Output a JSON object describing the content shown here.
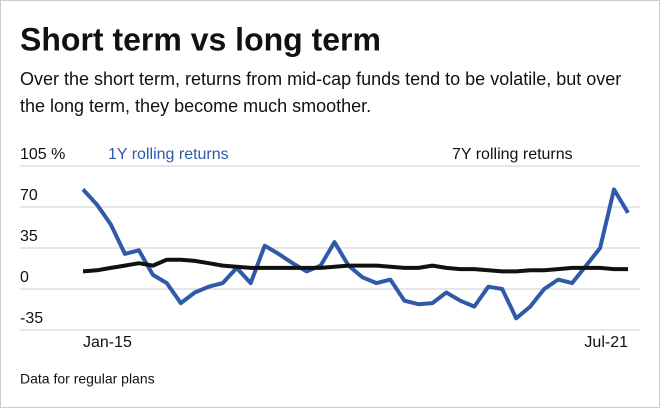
{
  "chart_data": {
    "type": "line",
    "title": "Short term vs long term",
    "subtitle": "Over the short term, returns from mid-cap funds tend to be volatile, but over the long term, they become much smoother.",
    "footnote": "Data for regular plans",
    "categories": [
      "Jan-15",
      null,
      null,
      null,
      null,
      null,
      null,
      null,
      null,
      null,
      null,
      null,
      null,
      null,
      null,
      null,
      null,
      null,
      null,
      null,
      null,
      null,
      null,
      null,
      null,
      null,
      null,
      null,
      null,
      null,
      null,
      null,
      null,
      null,
      null,
      null,
      null,
      null,
      null,
      "Jul-21"
    ],
    "series": [
      {
        "name": "1Y rolling returns",
        "color": "#2e5aa8",
        "values": [
          85,
          72,
          55,
          30,
          33,
          12,
          5,
          -12,
          -3,
          2,
          5,
          18,
          5,
          37,
          30,
          22,
          15,
          20,
          40,
          20,
          10,
          5,
          8,
          -10,
          -13,
          -12,
          -3,
          -10,
          -15,
          2,
          0,
          -25,
          -15,
          0,
          8,
          5,
          20,
          35,
          85,
          65
        ]
      },
      {
        "name": "7Y rolling returns",
        "color": "#111111",
        "values": [
          15,
          16,
          18,
          20,
          22,
          20,
          25,
          25,
          24,
          22,
          20,
          19,
          18,
          18,
          18,
          18,
          18,
          18,
          19,
          20,
          20,
          20,
          19,
          18,
          18,
          20,
          18,
          17,
          17,
          16,
          15,
          15,
          16,
          16,
          17,
          18,
          18,
          18,
          17,
          17
        ]
      }
    ],
    "ylim": [
      -35,
      105
    ],
    "yticks": [
      {
        "value": 105,
        "label": "105 %"
      },
      70,
      35,
      0,
      -35
    ],
    "grid": true
  }
}
